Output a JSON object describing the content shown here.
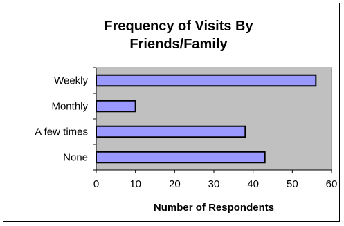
{
  "chart_data": {
    "type": "bar",
    "orientation": "horizontal",
    "title_lines": [
      "Frequency of Visits By",
      "Friends/Family"
    ],
    "categories": [
      "Weekly",
      "Monthly",
      "A few times",
      "None"
    ],
    "values": [
      56,
      10,
      38,
      43
    ],
    "xlabel": "Number of Respondents",
    "ylabel": "",
    "xlim": [
      0,
      60
    ],
    "xticks": [
      0,
      10,
      20,
      30,
      40,
      50,
      60
    ],
    "grid": false,
    "legend": "none",
    "colors": {
      "bar_fill": "#9999ff",
      "bar_stroke": "#000000",
      "plot_background": "#c0c0c0"
    }
  }
}
